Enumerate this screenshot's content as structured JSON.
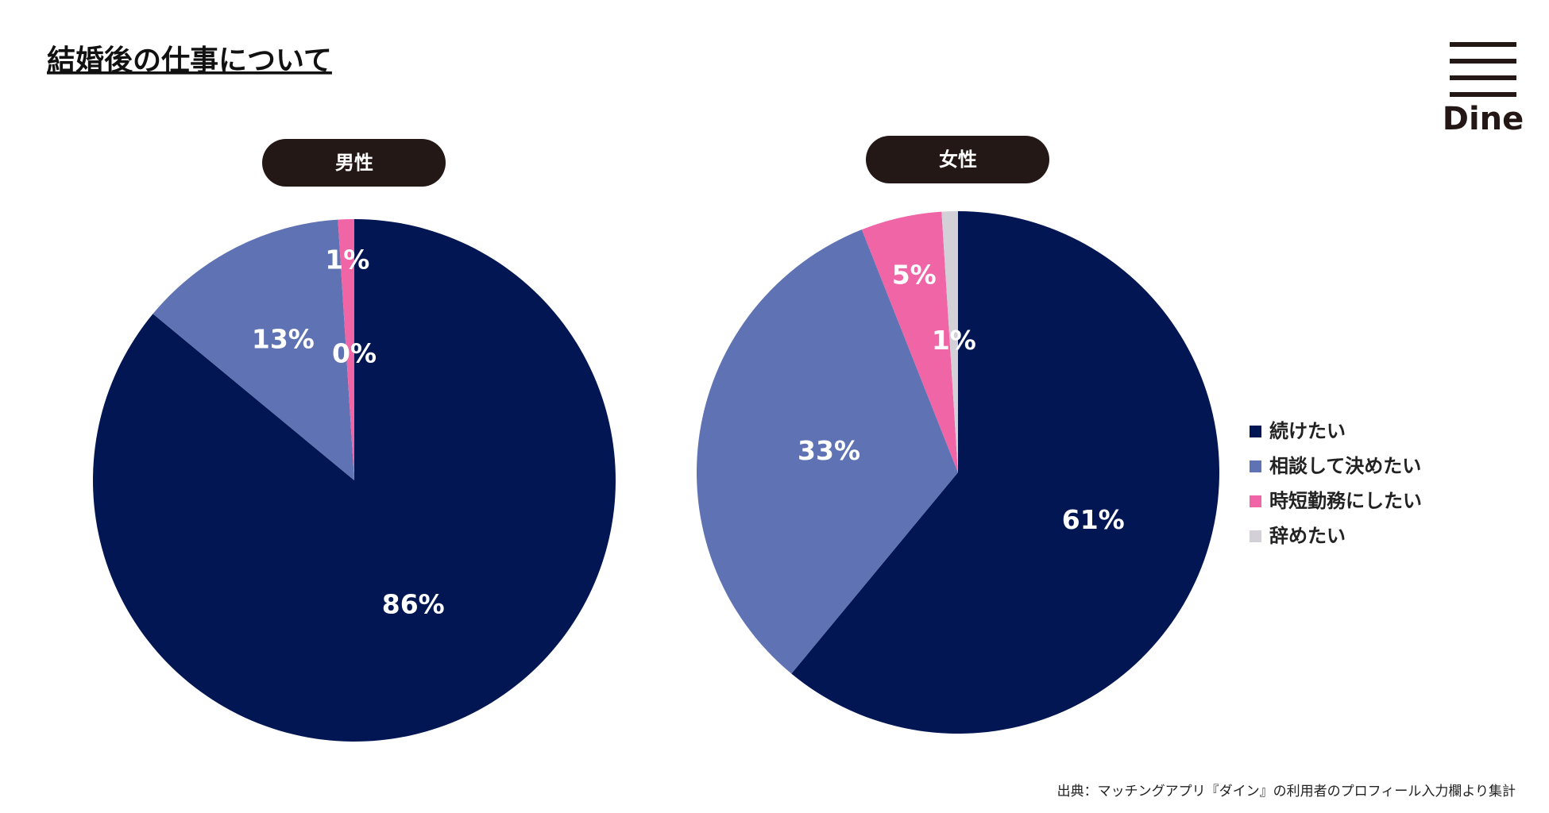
{
  "header": {
    "title": "結婚後の仕事について",
    "logo": "Dine"
  },
  "legend": {
    "categories": [
      "続けたい",
      "相談して決めたい",
      "時短勤務にしたい",
      "辞めたい"
    ],
    "colors": [
      "#021653",
      "#5f72b3",
      "#ef65a6",
      "#d3d0d8"
    ]
  },
  "chart_data": [
    {
      "type": "pie",
      "title": "男性",
      "values": [
        86,
        13,
        1,
        0
      ],
      "value_labels": [
        "86%",
        "13%",
        "1%",
        "0%"
      ]
    },
    {
      "type": "pie",
      "title": "女性",
      "values": [
        61,
        33,
        5,
        1
      ],
      "value_labels": [
        "61%",
        "33%",
        "5%",
        "1%"
      ]
    }
  ],
  "source": "出典：マッチングアプリ『ダイン』の利用者のプロフィール入力欄より集計"
}
